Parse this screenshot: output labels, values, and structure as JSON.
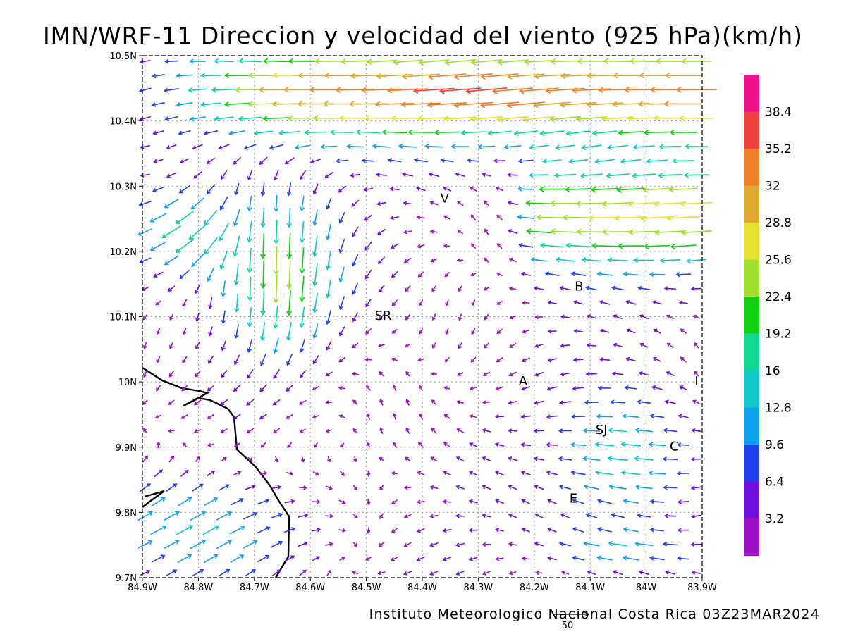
{
  "title": "IMN/WRF-11 Direccion y velocidad del viento (925 hPa)(km/h)",
  "footer": "Instituto Meteorologico Nacional Costa Rica 03Z23MAR2024",
  "reference_vector_label": "50",
  "chart_data": {
    "type": "vector-field",
    "lon_range": [
      -84.9,
      -83.9
    ],
    "lat_range": [
      9.7,
      10.5
    ],
    "grid": true,
    "x_tick_labels": [
      "84.9W",
      "84.8W",
      "84.7W",
      "84.6W",
      "84.5W",
      "84.4W",
      "84.3W",
      "84.2W",
      "84.1W",
      "84W",
      "83.9W"
    ],
    "y_tick_labels": [
      "10.5N",
      "10.4N",
      "10.3N",
      "10.2N",
      "10.1N",
      "10N",
      "9.9N",
      "9.8N",
      "9.7N"
    ],
    "colorbar": {
      "labels": [
        "38.4",
        "35.2",
        "32",
        "28.8",
        "25.6",
        "22.4",
        "19.2",
        "16",
        "12.8",
        "9.6",
        "6.4",
        "3.2"
      ],
      "colors": [
        "#ee1088",
        "#f04040",
        "#f08028",
        "#e0a830",
        "#e8e030",
        "#a0e030",
        "#10d010",
        "#10d890",
        "#10c8c8",
        "#10a0f0",
        "#2040f0",
        "#7010e0",
        "#a010c8"
      ]
    },
    "locations": [
      {
        "label": "V",
        "lon": -84.36,
        "lat": 10.275
      },
      {
        "label": "B",
        "lon": -84.12,
        "lat": 10.14
      },
      {
        "label": "SR",
        "lon": -84.47,
        "lat": 10.095
      },
      {
        "label": "A",
        "lon": -84.22,
        "lat": 9.995
      },
      {
        "label": "I",
        "lon": -83.91,
        "lat": 9.995
      },
      {
        "label": "SJ",
        "lon": -84.08,
        "lat": 9.92
      },
      {
        "label": "C",
        "lon": -83.95,
        "lat": 9.895
      },
      {
        "label": "E",
        "lon": -84.13,
        "lat": 9.815
      }
    ]
  }
}
